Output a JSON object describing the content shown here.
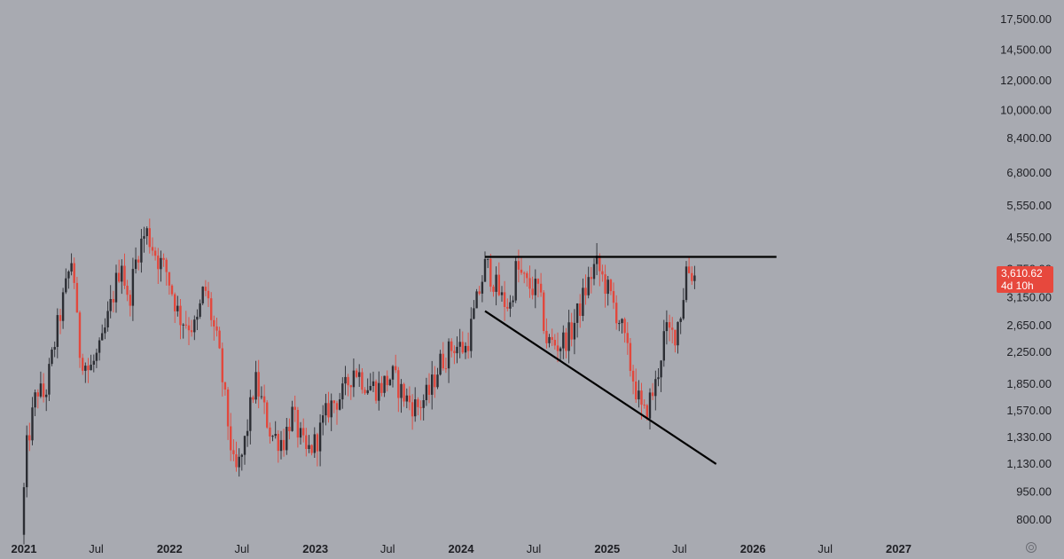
{
  "chart_data": {
    "type": "candlestick",
    "x_axis_labels": [
      "2021",
      "Jul",
      "2022",
      "Jul",
      "2023",
      "Jul",
      "2024",
      "Jul",
      "2025",
      "Jul",
      "2026",
      "Jul",
      "2027"
    ],
    "y_axis_labels": [
      "17,500.00",
      "14,500.00",
      "12,000.00",
      "10,000.00",
      "8,400.00",
      "6,800.00",
      "5,550.00",
      "4,550.00",
      "3,750.00",
      "3,150.00",
      "2,650.00",
      "2,250.00",
      "1,850.00",
      "1,570.00",
      "1,330.00",
      "1,130.00",
      "950.00",
      "800.00"
    ],
    "y_scale": "log",
    "y_range": [
      680,
      20000
    ],
    "x_range": [
      "2021-01-01",
      "2027-07-01"
    ],
    "current_price": "3,610.62",
    "countdown": "4d 10h",
    "colors": {
      "up": "#2b2d33",
      "down": "#e2483d",
      "background": "#a8aab1",
      "price_tag": "#e7483d",
      "trendline": "#000000"
    },
    "trendlines": [
      {
        "kind": "horizontal resistance",
        "from": [
          "2024-03-01",
          4050
        ],
        "to": [
          "2026-03-01",
          4050
        ]
      },
      {
        "kind": "descending support",
        "from": [
          "2024-03-01",
          2900
        ],
        "to": [
          "2025-10-01",
          1130
        ]
      }
    ],
    "price_path": [
      [
        "2021-01-01",
        730
      ],
      [
        "2021-01-15",
        1250
      ],
      [
        "2021-02-10",
        1800
      ],
      [
        "2021-03-01",
        1700
      ],
      [
        "2021-04-01",
        2600
      ],
      [
        "2021-05-10",
        4100
      ],
      [
        "2021-05-25",
        2300
      ],
      [
        "2021-06-20",
        2000
      ],
      [
        "2021-07-20",
        2300
      ],
      [
        "2021-08-25",
        3400
      ],
      [
        "2021-09-10",
        4000
      ],
      [
        "2021-09-25",
        3000
      ],
      [
        "2021-10-20",
        4200
      ],
      [
        "2021-11-10",
        4750
      ],
      [
        "2021-12-10",
        4000
      ],
      [
        "2021-12-31",
        3700
      ],
      [
        "2022-02-01",
        2800
      ],
      [
        "2022-03-15",
        2600
      ],
      [
        "2022-04-05",
        3400
      ],
      [
        "2022-05-10",
        2300
      ],
      [
        "2022-06-20",
        1050
      ],
      [
        "2022-07-10",
        1200
      ],
      [
        "2022-08-10",
        1900
      ],
      [
        "2022-09-20",
        1350
      ],
      [
        "2022-10-20",
        1300
      ],
      [
        "2022-11-10",
        1550
      ],
      [
        "2022-12-15",
        1200
      ],
      [
        "2023-01-10",
        1300
      ],
      [
        "2023-02-10",
        1600
      ],
      [
        "2023-03-20",
        1750
      ],
      [
        "2023-04-15",
        2050
      ],
      [
        "2023-05-15",
        1850
      ],
      [
        "2023-06-15",
        1800
      ],
      [
        "2023-07-20",
        1950
      ],
      [
        "2023-08-20",
        1700
      ],
      [
        "2023-09-20",
        1600
      ],
      [
        "2023-10-20",
        1750
      ],
      [
        "2023-11-15",
        2100
      ],
      [
        "2023-12-20",
        2350
      ],
      [
        "2024-01-20",
        2300
      ],
      [
        "2024-03-10",
        3900
      ],
      [
        "2024-04-20",
        3100
      ],
      [
        "2024-05-10",
        3000
      ],
      [
        "2024-05-25",
        3800
      ],
      [
        "2024-06-20",
        3400
      ],
      [
        "2024-07-20",
        3300
      ],
      [
        "2024-08-10",
        2400
      ],
      [
        "2024-09-10",
        2350
      ],
      [
        "2024-10-10",
        2550
      ],
      [
        "2024-11-10",
        3200
      ],
      [
        "2024-12-10",
        3900
      ],
      [
        "2025-01-10",
        3300
      ],
      [
        "2025-02-10",
        2700
      ],
      [
        "2025-03-10",
        2000
      ],
      [
        "2025-04-08",
        1500
      ],
      [
        "2025-05-10",
        1850
      ],
      [
        "2025-06-01",
        2550
      ],
      [
        "2025-06-25",
        2500
      ],
      [
        "2025-07-15",
        3000
      ],
      [
        "2025-07-25",
        3800
      ],
      [
        "2025-08-12",
        3610
      ]
    ]
  }
}
